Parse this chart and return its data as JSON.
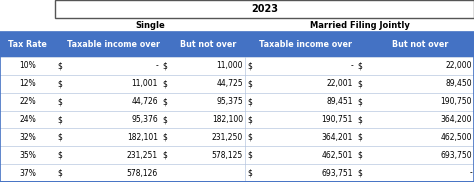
{
  "title": "2023",
  "header_single": "Single",
  "header_married": "Married Filing Jointly",
  "col_headers": [
    "Tax Rate",
    "Taxable income over",
    "But not over",
    "Taxable income over",
    "But not over"
  ],
  "rows": [
    [
      "10%",
      "$",
      "-",
      "$",
      "11,000",
      "$",
      "-",
      "$",
      "22,000"
    ],
    [
      "12%",
      "$",
      "11,001",
      "$",
      "44,725",
      "$",
      "22,001",
      "$",
      "89,450"
    ],
    [
      "22%",
      "$",
      "44,726",
      "$",
      "95,375",
      "$",
      "89,451",
      "$",
      "190,750"
    ],
    [
      "24%",
      "$",
      "95,376",
      "$",
      "182,100",
      "$",
      "190,751",
      "$",
      "364,200"
    ],
    [
      "32%",
      "$",
      "182,101",
      "$",
      "231,250",
      "$",
      "364,201",
      "$",
      "462,500"
    ],
    [
      "35%",
      "$",
      "231,251",
      "$",
      "578,125",
      "$",
      "462,501",
      "$",
      "693,750"
    ],
    [
      "37%",
      "$",
      "578,126",
      "",
      "",
      "$",
      "693,751",
      "$",
      "-"
    ]
  ],
  "header_bg": "#4472C4",
  "header_fg": "#FFFFFF",
  "table_border": "#4472C4",
  "row_line_color": "#B8C7E0",
  "fig_bg": "#FFFFFF",
  "title_box_border": "#555555",
  "font_size_title": 7.0,
  "font_size_subhdr": 6.0,
  "font_size_colhdr": 5.8,
  "font_size_data": 5.5
}
